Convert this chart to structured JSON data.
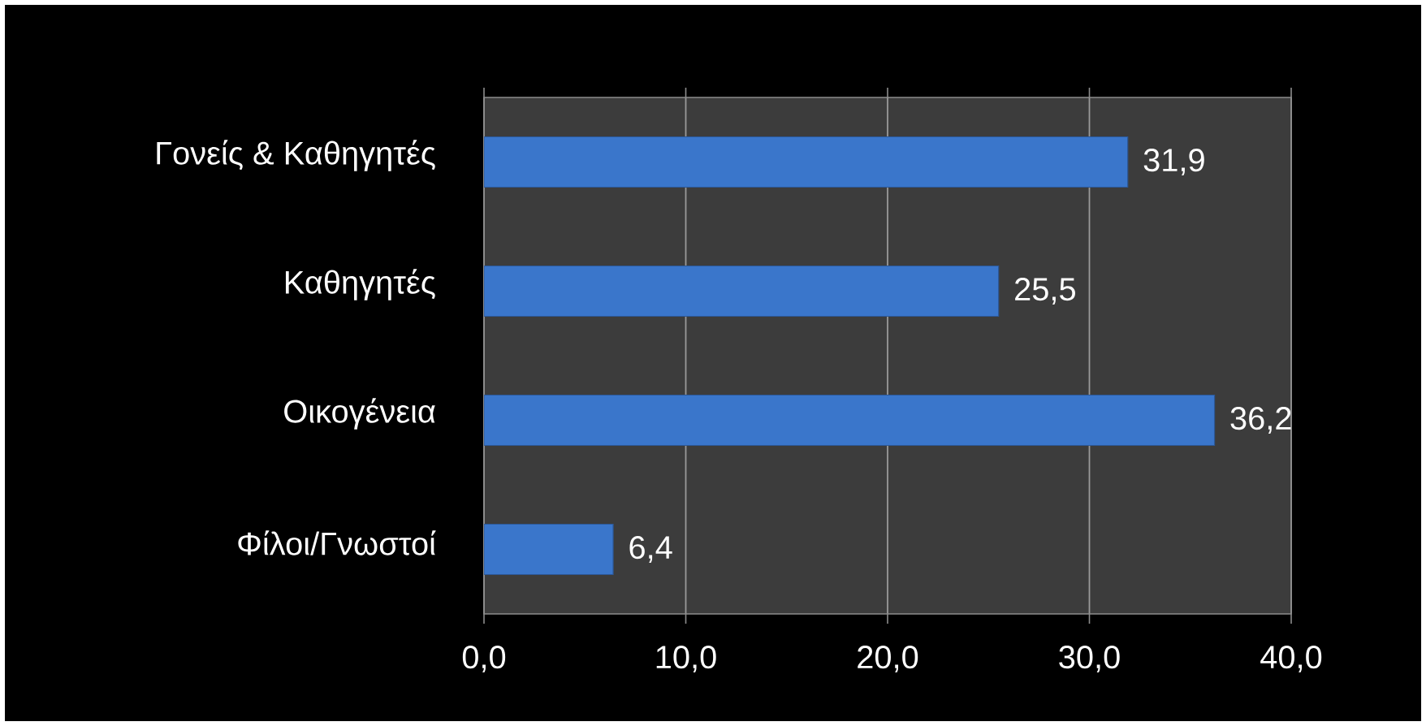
{
  "chart_data": {
    "type": "bar",
    "orientation": "horizontal",
    "categories": [
      "Γονείς & Καθηγητές",
      "Καθηγητές",
      "Οικογένεια",
      "Φίλοι/Γνωστοί"
    ],
    "values": [
      31.9,
      25.5,
      36.2,
      6.4
    ],
    "value_labels": [
      "31,9",
      "25,5",
      "36,2",
      "6,4"
    ],
    "color": "#3a76cb",
    "xlim": [
      0,
      40
    ],
    "xticks": [
      {
        "value": 0,
        "label": "0,0"
      },
      {
        "value": 10,
        "label": "10,0"
      },
      {
        "value": 20,
        "label": "20,0"
      },
      {
        "value": 30,
        "label": "30,0"
      },
      {
        "value": 40,
        "label": "40,0"
      }
    ],
    "grid": "x"
  }
}
